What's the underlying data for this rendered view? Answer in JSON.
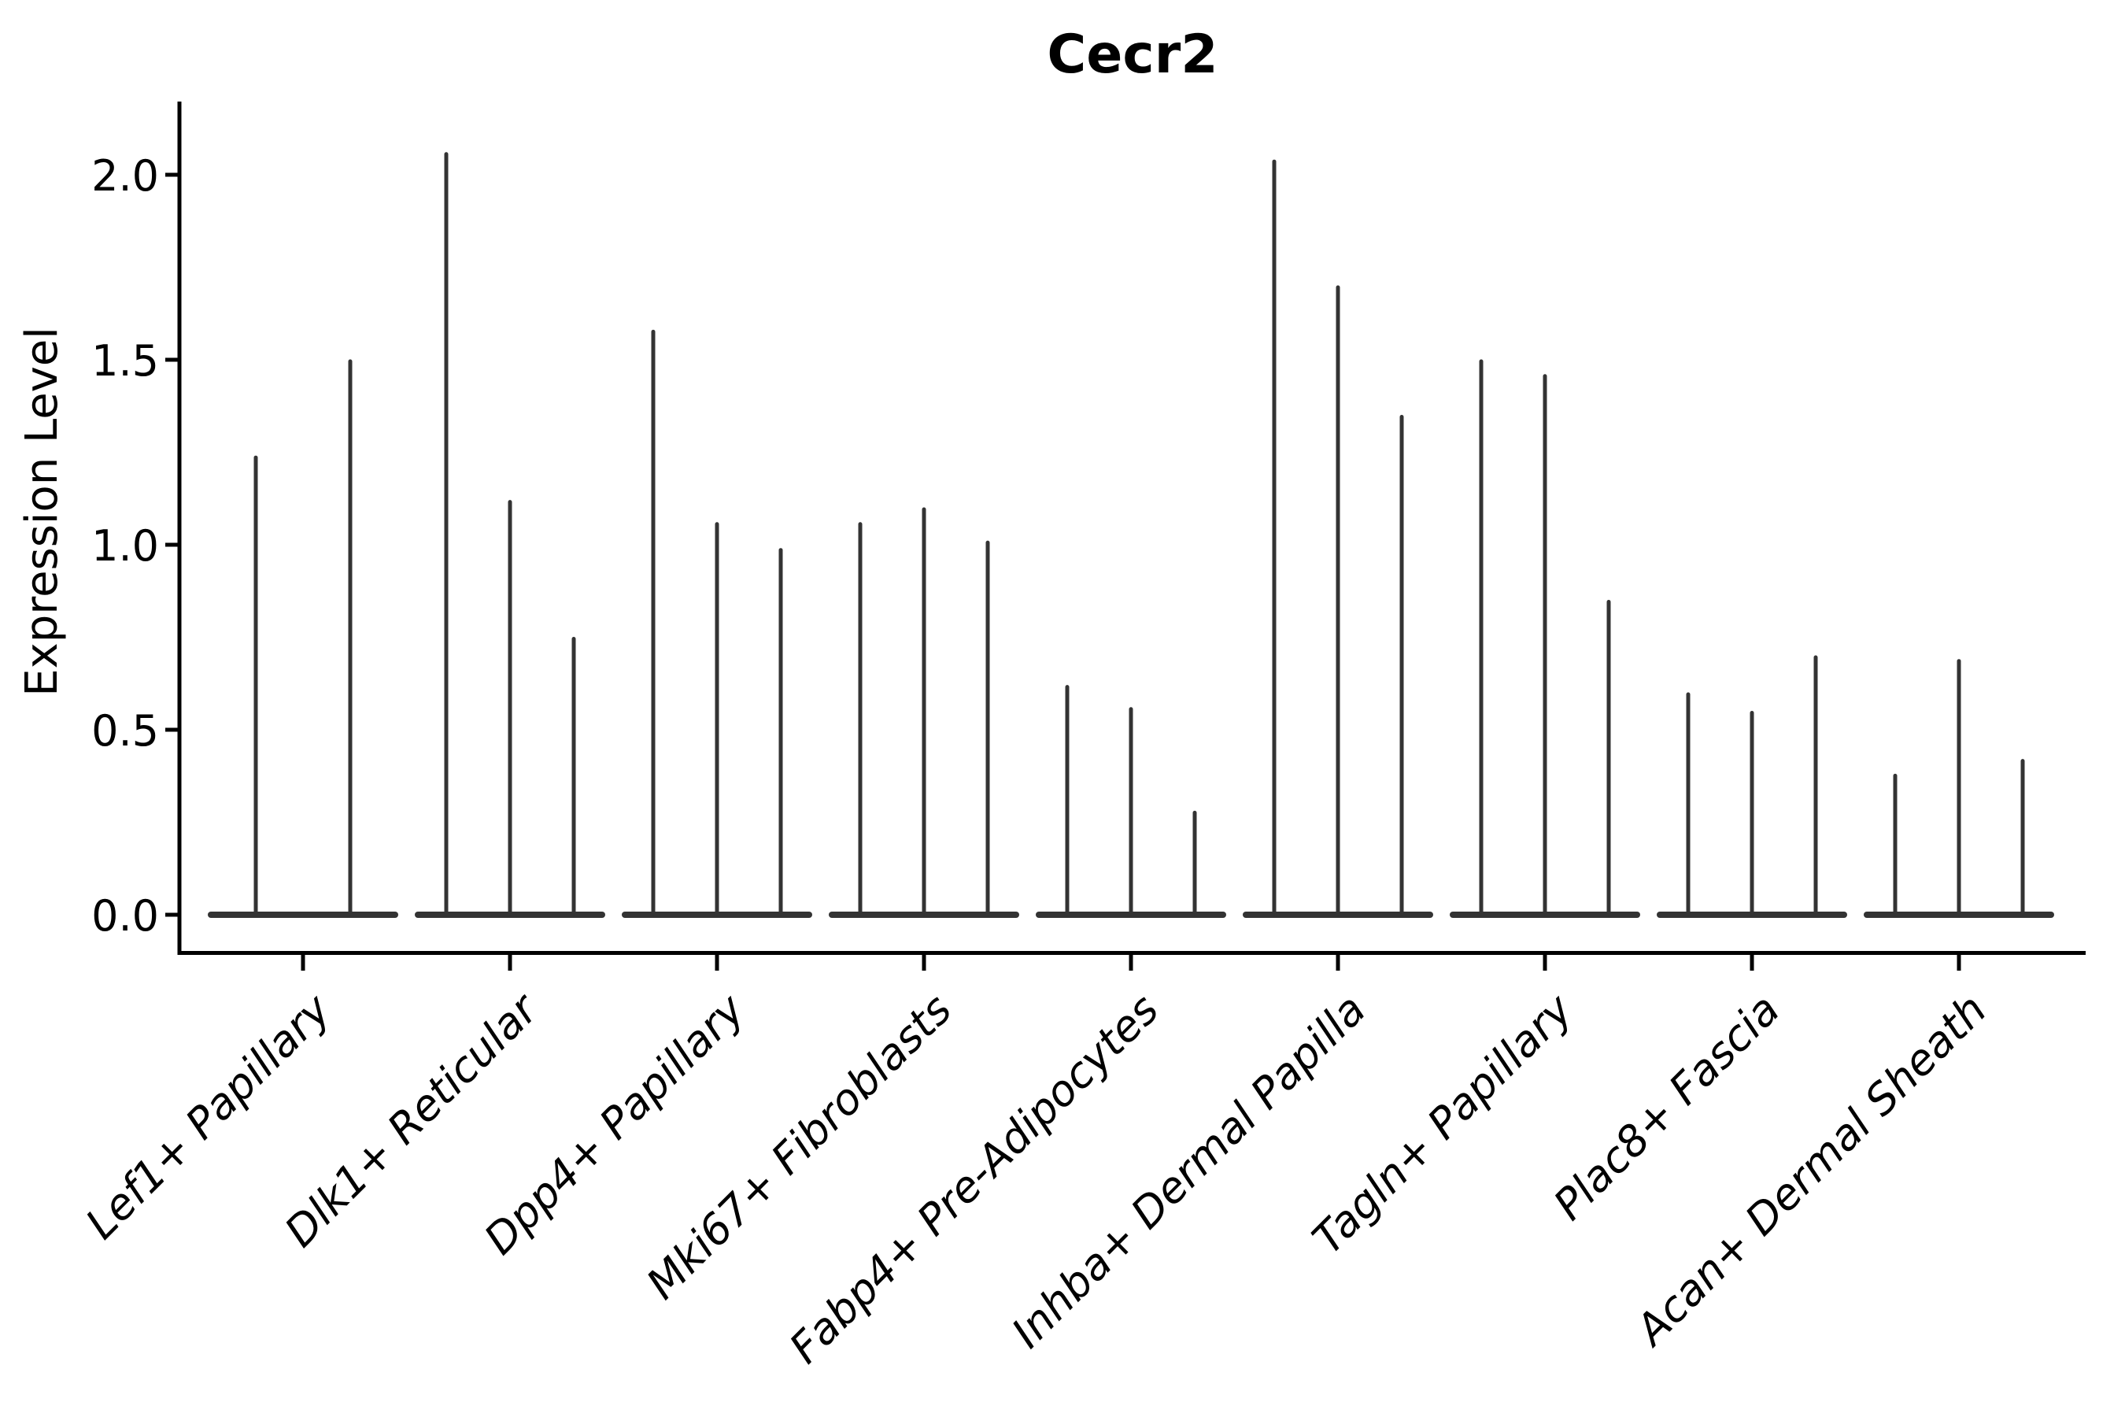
{
  "chart_data": {
    "type": "violin",
    "title": "Cecr2",
    "xlabel": "",
    "ylabel": "Expression Level",
    "categories": [
      "Lef1+ Papillary",
      "Dlk1+ Reticular",
      "Dpp4+ Papillary",
      "Mki67+ Fibroblasts",
      "Fabp4+ Pre-Adipocytes",
      "Inhba+ Dermal Papilla",
      "Tagln+ Papillary",
      "Plac8+ Fascia",
      "Acan+ Dermal Sheath"
    ],
    "values": [
      [
        1.24,
        1.5
      ],
      [
        2.06,
        1.12,
        0.75
      ],
      [
        1.58,
        1.06,
        0.99
      ],
      [
        1.06,
        1.1,
        1.01
      ],
      [
        0.62,
        0.56,
        0.28
      ],
      [
        2.04,
        1.7,
        1.35
      ],
      [
        1.5,
        1.46,
        0.85
      ],
      [
        0.6,
        0.55,
        0.7
      ],
      [
        0.38,
        0.69,
        0.42
      ]
    ],
    "values_unit": "Expression Level (peak of each thin violin)",
    "violins_per_category": [
      2,
      3,
      3,
      3,
      3,
      3,
      3,
      3,
      3
    ],
    "yticks": [
      0.0,
      0.5,
      1.0,
      1.5,
      2.0
    ],
    "ytick_labels": [
      "0.0",
      "0.5",
      "1.0",
      "1.5",
      "2.0"
    ],
    "ylim": [
      -0.11,
      2.2
    ],
    "grid": false,
    "legend": null,
    "xtick_label_rotation_deg": 45,
    "xtick_label_style": "italic",
    "colors": {
      "violin": "#333333",
      "axis": "#000000",
      "text": "#000000",
      "background": "#ffffff"
    }
  }
}
